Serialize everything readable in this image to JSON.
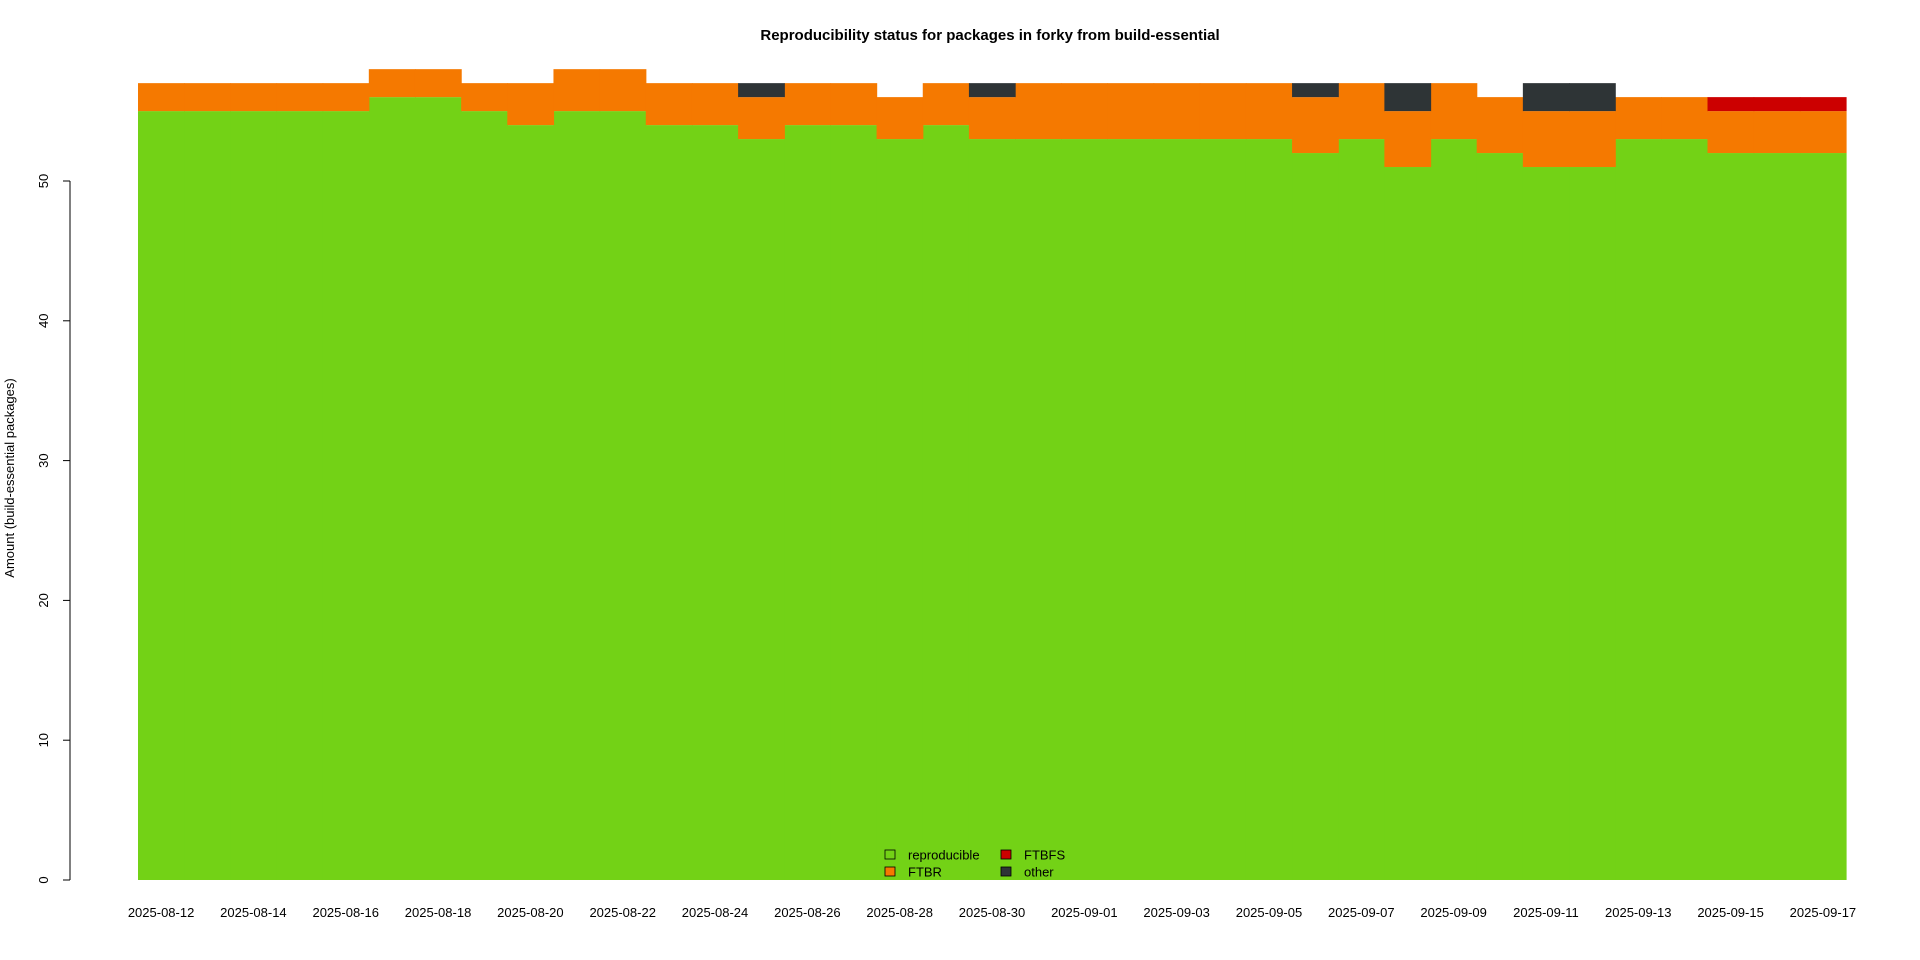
{
  "chart_data": {
    "type": "area",
    "stacked": true,
    "step": true,
    "title": "Reproducibility status for packages in forky from build-essential",
    "xlabel": "",
    "ylabel": "Amount (build-essential packages)",
    "ylim": [
      0,
      58
    ],
    "yticks": [
      0,
      10,
      20,
      30,
      40,
      50
    ],
    "x_tick_labels": [
      "2025-08-12",
      "2025-08-14",
      "2025-08-16",
      "2025-08-18",
      "2025-08-20",
      "2025-08-22",
      "2025-08-24",
      "2025-08-26",
      "2025-08-28",
      "2025-08-30",
      "2025-09-01",
      "2025-09-03",
      "2025-09-05",
      "2025-09-07",
      "2025-09-09",
      "2025-09-11",
      "2025-09-13",
      "2025-09-15",
      "2025-09-17"
    ],
    "x": [
      "2025-08-12",
      "2025-08-13",
      "2025-08-14",
      "2025-08-15",
      "2025-08-16",
      "2025-08-17",
      "2025-08-18",
      "2025-08-19",
      "2025-08-20",
      "2025-08-21",
      "2025-08-22",
      "2025-08-23",
      "2025-08-24",
      "2025-08-25",
      "2025-08-26",
      "2025-08-27",
      "2025-08-28",
      "2025-08-29",
      "2025-08-30",
      "2025-08-31",
      "2025-09-01",
      "2025-09-02",
      "2025-09-03",
      "2025-09-04",
      "2025-09-05",
      "2025-09-06",
      "2025-09-07",
      "2025-09-08",
      "2025-09-09",
      "2025-09-10",
      "2025-09-11",
      "2025-09-12",
      "2025-09-13",
      "2025-09-14",
      "2025-09-15",
      "2025-09-16",
      "2025-09-17"
    ],
    "series": [
      {
        "name": "reproducible",
        "color": "#73d216",
        "values": [
          55,
          55,
          55,
          55,
          55,
          56,
          56,
          55,
          54,
          55,
          55,
          54,
          54,
          53,
          54,
          54,
          53,
          54,
          53,
          53,
          53,
          53,
          53,
          53,
          53,
          52,
          53,
          51,
          53,
          52,
          51,
          51,
          53,
          53,
          52,
          52,
          52
        ]
      },
      {
        "name": "FTBR",
        "color": "#f57900",
        "values": [
          2,
          2,
          2,
          2,
          2,
          2,
          2,
          2,
          3,
          3,
          3,
          3,
          3,
          3,
          3,
          3,
          3,
          3,
          3,
          4,
          4,
          4,
          4,
          4,
          4,
          4,
          4,
          4,
          4,
          4,
          4,
          4,
          3,
          3,
          3,
          3,
          3
        ]
      },
      {
        "name": "FTBFS",
        "color": "#cc0000",
        "values": [
          0,
          0,
          0,
          0,
          0,
          0,
          0,
          0,
          0,
          0,
          0,
          0,
          0,
          0,
          0,
          0,
          0,
          0,
          0,
          0,
          0,
          0,
          0,
          0,
          0,
          0,
          0,
          0,
          0,
          0,
          0,
          0,
          0,
          0,
          1,
          1,
          1
        ]
      },
      {
        "name": "other",
        "color": "#2e3436",
        "values": [
          0,
          0,
          0,
          0,
          0,
          0,
          0,
          0,
          0,
          0,
          0,
          0,
          0,
          1,
          0,
          0,
          0,
          0,
          1,
          0,
          0,
          0,
          0,
          0,
          0,
          1,
          0,
          2,
          0,
          0,
          2,
          2,
          0,
          0,
          0,
          0,
          0
        ]
      }
    ],
    "legend": {
      "placement": "bottom-center",
      "items": [
        {
          "label": "reproducible",
          "color": "#73d216"
        },
        {
          "label": "FTBFS",
          "color": "#cc0000"
        },
        {
          "label": "FTBR",
          "color": "#f57900"
        },
        {
          "label": "other",
          "color": "#2e3436"
        }
      ]
    },
    "grid": false
  }
}
